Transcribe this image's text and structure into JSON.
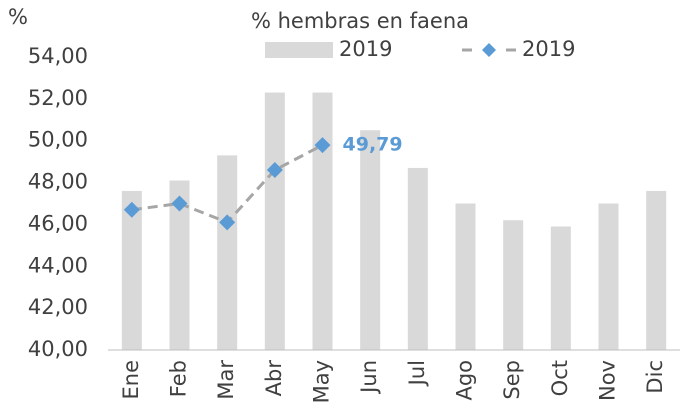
{
  "chart_data": {
    "type": "bar_line",
    "title": "% hembras en faena",
    "y_label": "%",
    "categories": [
      "Ene",
      "Feb",
      "Mar",
      "Abr",
      "May",
      "Jun",
      "Jul",
      "Ago",
      "Sep",
      "Oct",
      "Nov",
      "Dic"
    ],
    "series": [
      {
        "name": "2019",
        "type": "bar",
        "color": "#d9d9d9",
        "values": [
          47.6,
          48.1,
          49.3,
          52.3,
          52.3,
          50.5,
          48.7,
          47.0,
          46.2,
          45.9,
          47.0,
          47.6
        ]
      },
      {
        "name": "2019",
        "type": "line",
        "color": "#5b9bd5",
        "line_color": "#a6a6a6",
        "values": [
          46.7,
          47.0,
          46.1,
          48.6,
          49.79,
          null,
          null,
          null,
          null,
          null,
          null,
          null
        ],
        "value_labels": [
          null,
          null,
          null,
          null,
          "49,79",
          null,
          null,
          null,
          null,
          null,
          null,
          null
        ]
      }
    ],
    "ylim": [
      40,
      54
    ],
    "yticks": [
      {
        "value": 40,
        "label": "40,00"
      },
      {
        "value": 42,
        "label": "42,00"
      },
      {
        "value": 44,
        "label": "44,00"
      },
      {
        "value": 46,
        "label": "46,00"
      },
      {
        "value": 48,
        "label": "48,00"
      },
      {
        "value": 50,
        "label": "50,00"
      },
      {
        "value": 52,
        "label": "52,00"
      },
      {
        "value": 54,
        "label": "54,00"
      }
    ],
    "grid": false
  }
}
